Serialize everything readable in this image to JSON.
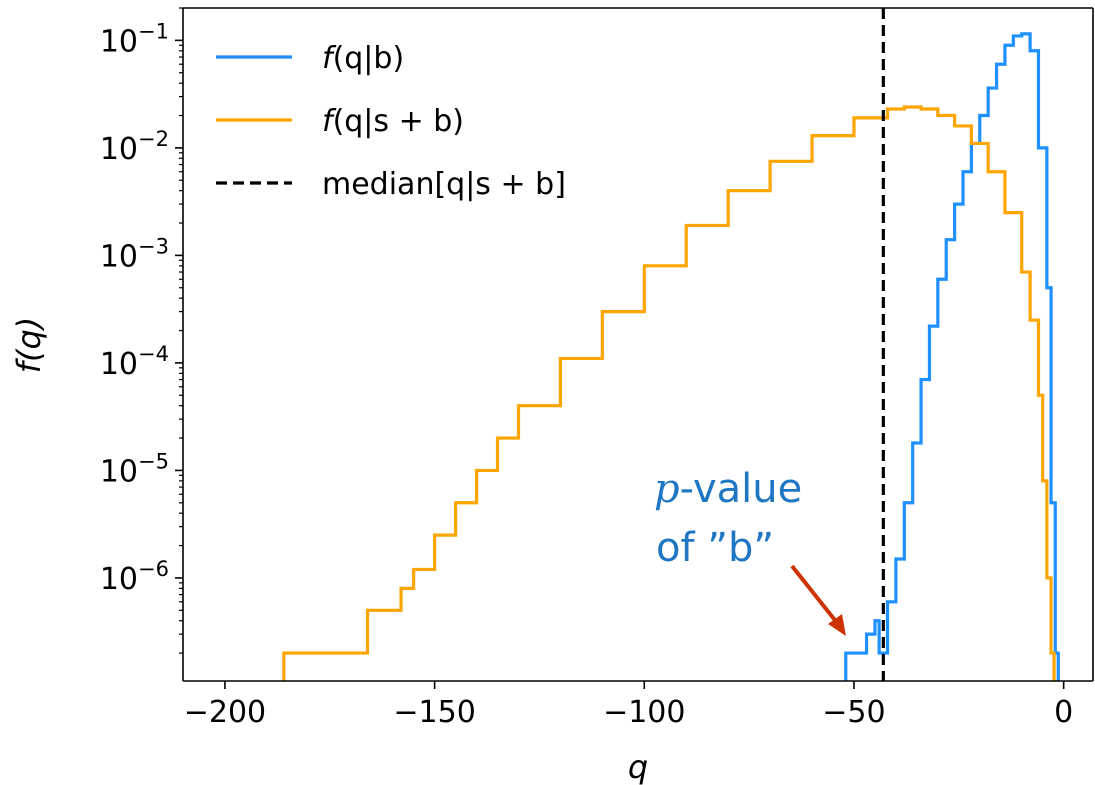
{
  "chart_data": {
    "type": "line",
    "xlabel": "q",
    "ylabel": "f(q)",
    "xlim": [
      -210,
      7
    ],
    "ylim": [
      1.1e-07,
      0.2
    ],
    "y_scale": "log",
    "xticks": [
      {
        "value": -200,
        "label": "−200"
      },
      {
        "value": -150,
        "label": "−150"
      },
      {
        "value": -100,
        "label": "−100"
      },
      {
        "value": -50,
        "label": "−50"
      },
      {
        "value": 0,
        "label": "0"
      }
    ],
    "yticks": [
      {
        "exp": -1,
        "base": "10",
        "sup": "−1"
      },
      {
        "exp": -2,
        "base": "10",
        "sup": "−2"
      },
      {
        "exp": -3,
        "base": "10",
        "sup": "−3"
      },
      {
        "exp": -4,
        "base": "10",
        "sup": "−4"
      },
      {
        "exp": -5,
        "base": "10",
        "sup": "−5"
      },
      {
        "exp": -6,
        "base": "10",
        "sup": "−6"
      }
    ],
    "legend_position": "top-left",
    "series": [
      {
        "name": "f(q|b)",
        "color": "#1e90ff",
        "style": "step",
        "x": [
          -51,
          -49,
          -47,
          -45,
          -44,
          -42,
          -40,
          -38,
          -36,
          -34,
          -32,
          -30,
          -28,
          -26,
          -24,
          -22,
          -20,
          -18,
          -16,
          -14,
          -12,
          -10,
          -8,
          -6,
          -4,
          -3,
          -2
        ],
        "y": [
          2e-07,
          2e-07,
          3e-07,
          4e-07,
          2e-07,
          6e-07,
          1.5e-06,
          5e-06,
          1.8e-05,
          7e-05,
          0.00022,
          0.0006,
          0.0014,
          0.003,
          0.006,
          0.011,
          0.02,
          0.036,
          0.06,
          0.09,
          0.11,
          0.115,
          0.08,
          0.01,
          0.0005,
          5e-06,
          2e-07
        ]
      },
      {
        "name": "f(q|s+b)",
        "color": "#ffa500",
        "style": "step",
        "x": [
          -185,
          -180,
          -175,
          -170,
          -166,
          -162,
          -158,
          -155,
          -150,
          -145,
          -140,
          -135,
          -130,
          -120,
          -110,
          -100,
          -90,
          -80,
          -70,
          -60,
          -50,
          -42,
          -38,
          -34,
          -30,
          -26,
          -22,
          -18,
          -14,
          -10,
          -8,
          -6,
          -5,
          -4,
          -3
        ],
        "y": [
          2e-07,
          2e-07,
          2e-07,
          2e-07,
          5e-07,
          5e-07,
          8e-07,
          1.2e-06,
          2.5e-06,
          5e-06,
          1e-05,
          2e-05,
          4e-05,
          0.00011,
          0.0003,
          0.0008,
          0.0019,
          0.004,
          0.0075,
          0.013,
          0.019,
          0.023,
          0.024,
          0.023,
          0.02,
          0.016,
          0.011,
          0.006,
          0.0025,
          0.0007,
          0.00025,
          5e-05,
          8e-06,
          1e-06,
          2e-07
        ]
      }
    ],
    "vlines": [
      {
        "name": "median[q|s+b]",
        "x": -43,
        "color": "#000000",
        "dash": "dashed"
      }
    ],
    "annotation": {
      "line1_italic": "p",
      "line1_rest": "-value",
      "line2": "of ”b”",
      "color": "#1f77c4",
      "arrow_color": "#cc3300"
    }
  },
  "legend": {
    "items": [
      {
        "label_prefix": "f",
        "label_rest": "(q|b)",
        "color": "#1e90ff",
        "dash": "solid"
      },
      {
        "label_prefix": "f",
        "label_rest": "(q|s + b)",
        "color": "#ffa500",
        "dash": "solid"
      },
      {
        "label_prefix": "",
        "label_rest": "median[q|s + b]",
        "color": "#000000",
        "dash": "dashed"
      }
    ]
  }
}
